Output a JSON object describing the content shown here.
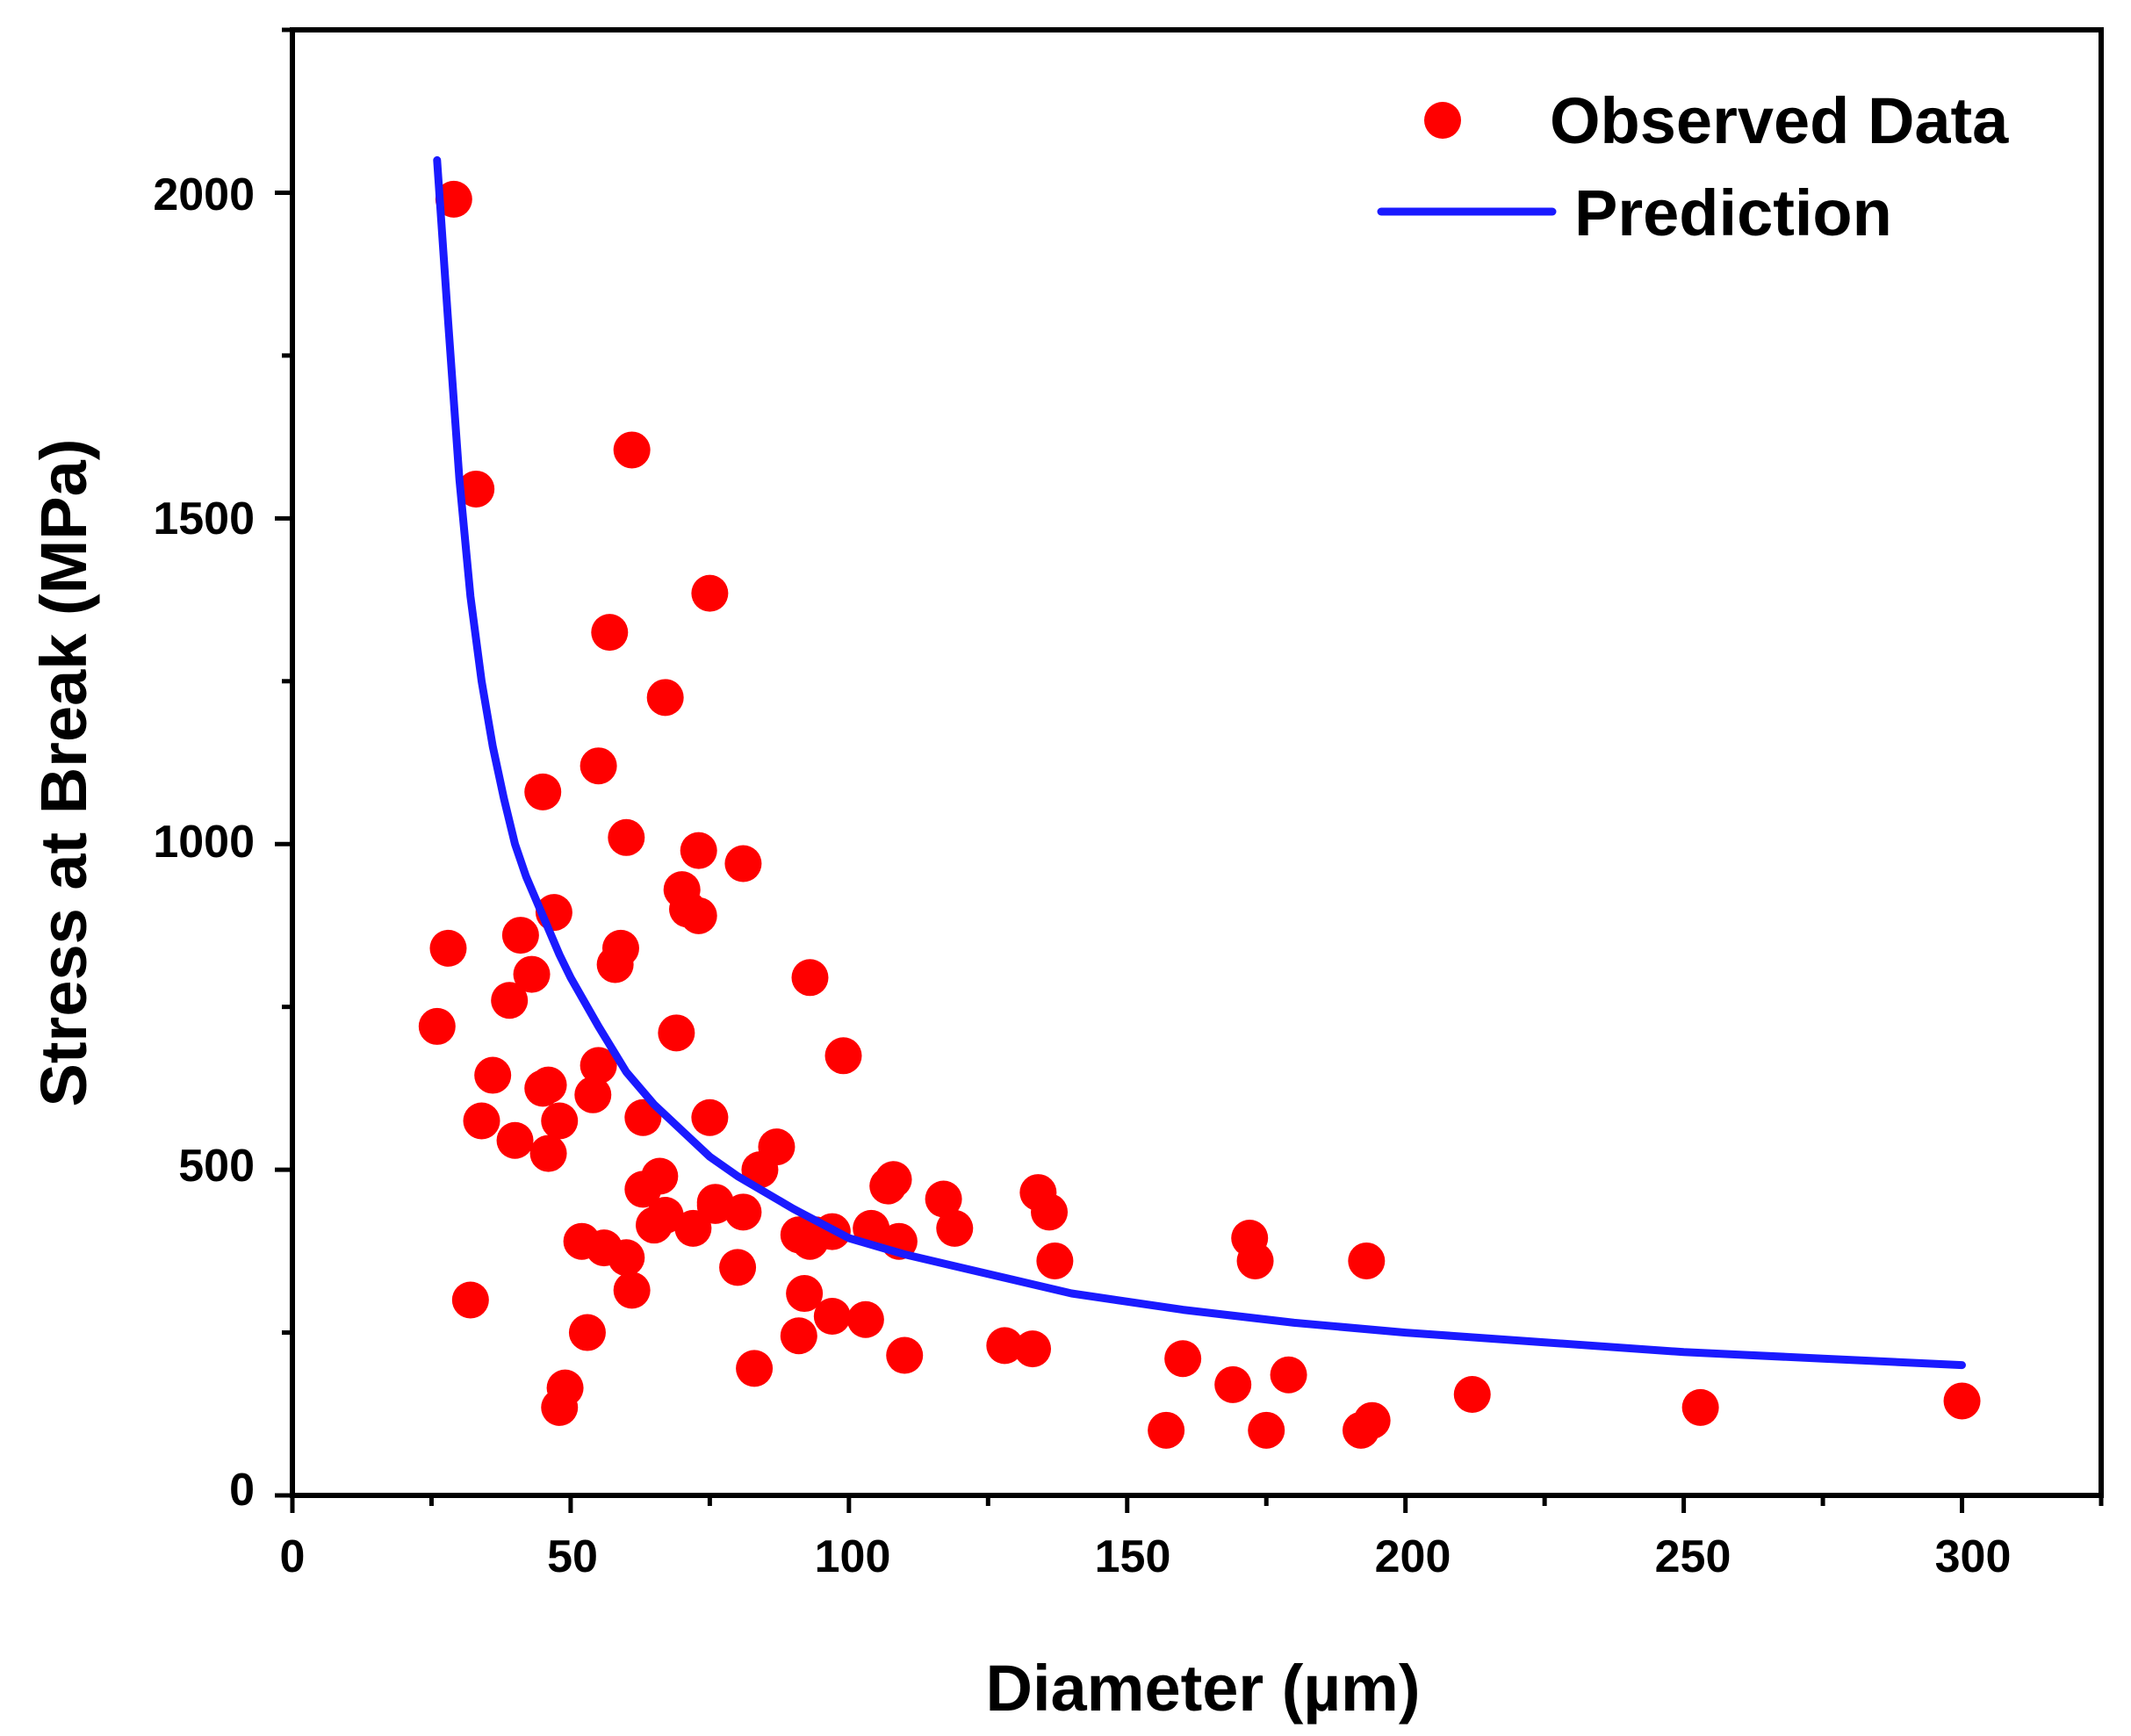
{
  "chart_data": {
    "type": "scatter",
    "title": "",
    "xlabel": "Diameter (µm)",
    "ylabel": "Stress at Break (MPa)",
    "xlim": [
      0,
      325
    ],
    "ylim": [
      0,
      2250
    ],
    "xticks": [
      "0",
      "50",
      "100",
      "150",
      "200",
      "250",
      "300"
    ],
    "yticks": [
      "0",
      "500",
      "1000",
      "1500",
      "2000"
    ],
    "legend_position": "top-right",
    "grid": false,
    "colors": {
      "observed": "#ff0000",
      "prediction": "#1a1aff",
      "axis": "#000000"
    },
    "series": [
      {
        "name": "Observed Data",
        "kind": "scatter",
        "x": [
          29,
          32,
          33,
          26,
          28,
          34,
          36,
          39,
          40,
          41,
          43,
          45,
          45,
          46,
          46,
          47,
          48,
          49,
          48,
          52,
          53,
          54,
          55,
          55,
          56,
          57,
          58,
          59,
          60,
          60,
          61,
          61,
          63,
          63,
          65,
          66,
          67,
          67,
          69,
          70,
          71,
          72,
          73,
          73,
          75,
          75,
          76,
          76,
          80,
          81,
          81,
          83,
          84,
          87,
          91,
          91,
          92,
          93,
          93,
          94,
          97,
          97,
          99,
          103,
          104,
          107,
          108,
          109,
          110,
          117,
          119,
          128,
          133,
          134,
          136,
          137,
          157,
          160,
          169,
          172,
          173,
          175,
          179,
          192,
          193,
          194,
          212,
          253,
          300
        ],
        "y": [
          1990,
          300,
          1545,
          720,
          840,
          575,
          645,
          760,
          545,
          860,
          800,
          1080,
          625,
          525,
          630,
          895,
          135,
          165,
          575,
          390,
          250,
          615,
          660,
          1120,
          380,
          1325,
          815,
          840,
          365,
          1010,
          315,
          1605,
          470,
          580,
          415,
          490,
          1225,
          430,
          710,
          930,
          900,
          410,
          990,
          890,
          1385,
          580,
          450,
          445,
          350,
          435,
          970,
          195,
          500,
          535,
          400,
          245,
          310,
          795,
          390,
          400,
          275,
          405,
          675,
          270,
          410,
          475,
          485,
          390,
          215,
          455,
          410,
          230,
          225,
          465,
          435,
          360,
          100,
          210,
          170,
          395,
          360,
          100,
          185,
          100,
          360,
          115,
          155,
          135,
          145
        ]
      },
      {
        "name": "Prediction",
        "kind": "line",
        "x": [
          26,
          28,
          30,
          32,
          34,
          36,
          38,
          40,
          42,
          45,
          48,
          50,
          55,
          60,
          65,
          70,
          75,
          80,
          90,
          100,
          110,
          120,
          140,
          160,
          180,
          200,
          225,
          250,
          275,
          300
        ],
        "y": [
          2050,
          1800,
          1560,
          1380,
          1250,
          1150,
          1070,
          1000,
          950,
          890,
          830,
          795,
          720,
          650,
          600,
          560,
          520,
          490,
          440,
          395,
          370,
          350,
          310,
          285,
          265,
          250,
          235,
          220,
          210,
          200
        ]
      }
    ]
  }
}
